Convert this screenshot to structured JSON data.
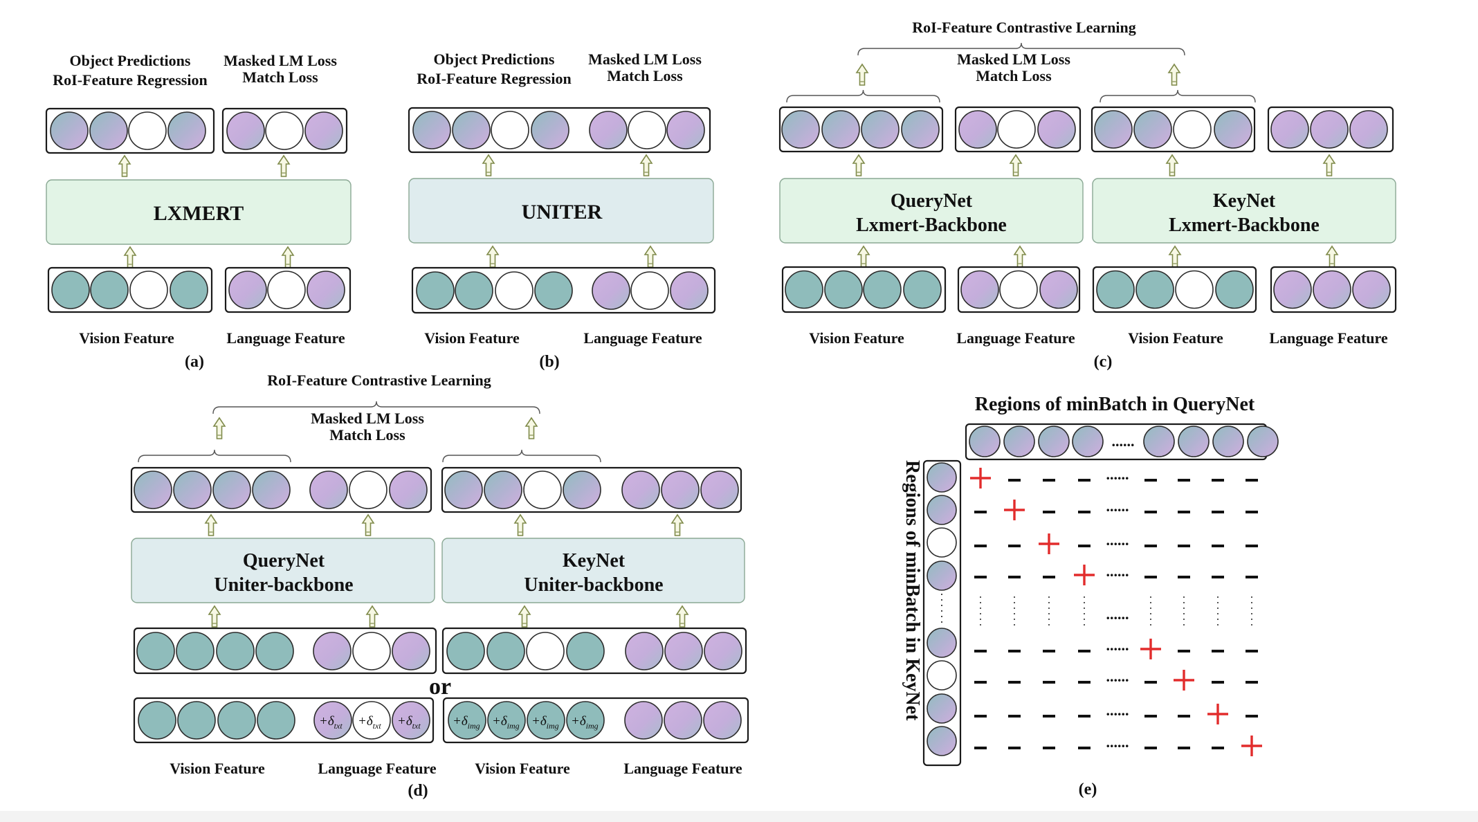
{
  "panel_a": {
    "top_label_1": "Object Predictions",
    "top_label_2": "RoI-Feature Regression",
    "top_label_3": "Masked  LM Loss",
    "top_label_4": "Match Loss",
    "model": "LXMERT",
    "vision": "Vision Feature",
    "language": "Language Feature",
    "caption": "(a)"
  },
  "panel_b": {
    "top_label_1": "Object Predictions",
    "top_label_2": "RoI-Feature Regression",
    "top_label_3": "Masked  LM Loss",
    "top_label_4": "Match Loss",
    "model": "UNITER",
    "vision": "Vision Feature",
    "language": "Language Feature",
    "caption": "(b)"
  },
  "panel_c": {
    "contrastive": "RoI-Feature Contrastive Learning",
    "loss_1": "Masked  LM Loss",
    "loss_2": "Match Loss",
    "query_1": "QueryNet",
    "query_2": "Lxmert-Backbone",
    "key_1": "KeyNet",
    "key_2": "Lxmert-Backbone",
    "vision_1": "Vision Feature",
    "language_1": "Language Feature",
    "vision_2": "Vision Feature",
    "language_2": "Language Feature",
    "caption": "(c)"
  },
  "panel_d": {
    "contrastive": "RoI-Feature Contrastive Learning",
    "loss_1": "Masked  LM Loss",
    "loss_2": "Match Loss",
    "query_1": "QueryNet",
    "query_2": "Uniter-backbone",
    "key_1": "KeyNet",
    "key_2": "Uniter-backbone",
    "or": "or",
    "delta_txt_prefix": "+δ",
    "delta_txt_sub": "txt",
    "delta_img_prefix": "+δ",
    "delta_img_sub": "img",
    "vision_1": "Vision Feature",
    "language_1": "Language Feature",
    "vision_2": "Vision Feature",
    "language_2": "Language Feature",
    "caption": "(d)"
  },
  "panel_e": {
    "top_title": "Regions of minBatch in QueryNet",
    "side_title": "Regions of minBatch in KeyNet",
    "ellipsis": "......",
    "caption": "(e)"
  },
  "colors": {
    "teal": "#8fbcbb",
    "lilac": "#c7aedd",
    "lxmert_fill": "#e2f4e6",
    "uniter_fill": "#dfecee",
    "plus": "#e22c2c",
    "arrow_fill": "#f7f8e4",
    "arrow_stroke": "#7f8a4a"
  }
}
